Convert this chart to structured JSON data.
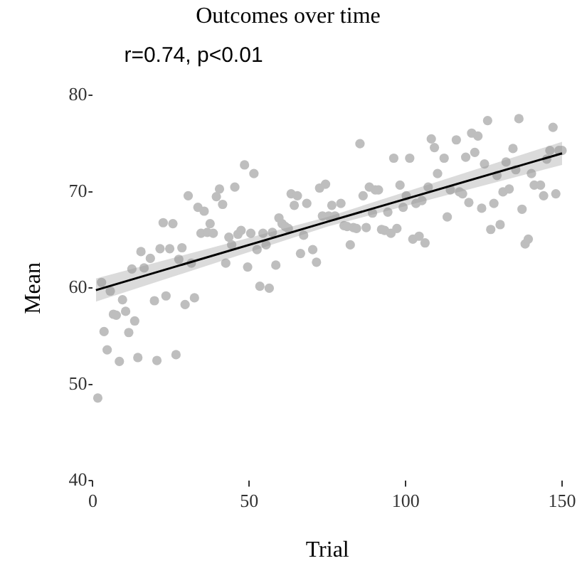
{
  "chart_data": {
    "type": "scatter",
    "title": "Outcomes over time",
    "xlabel": "Trial",
    "ylabel": "Mean",
    "annotations": [
      "r=0.74, p<0.01"
    ],
    "xticks": [
      0,
      50,
      100,
      150
    ],
    "yticks": [
      40,
      50,
      60,
      70,
      80
    ],
    "xlim": [
      0,
      150
    ],
    "ylim": [
      40,
      80
    ],
    "grid": false,
    "legend": false,
    "series": [
      {
        "marker": "circle",
        "color": "#bebebe",
        "x": [
          1.6,
          2.8,
          3.6,
          4.6,
          5.6,
          6.6,
          7.5,
          8.5,
          9.5,
          10.5,
          11.5,
          12.5,
          13.4,
          14.4,
          15.4,
          16.4,
          18.4,
          19.7,
          20.5,
          21.5,
          22.5,
          23.4,
          24.6,
          25.6,
          26.6,
          27.5,
          28.5,
          29.5,
          30.5,
          31.5,
          32.5,
          33.6,
          34.6,
          35.6,
          36.6,
          37.5,
          38.5,
          39.5,
          40.5,
          41.5,
          42.5,
          43.5,
          44.4,
          45.4,
          46.4,
          47.4,
          48.5,
          49.5,
          50.5,
          51.5,
          52.5,
          53.4,
          54.4,
          55.4,
          56.4,
          57.4,
          58.5,
          59.5,
          60.5,
          61.5,
          62.5,
          63.4,
          64.4,
          65.4,
          66.4,
          67.4,
          68.4,
          70.3,
          71.5,
          72.5,
          73.4,
          74.4,
          75.4,
          76.4,
          77.4,
          79.3,
          80.3,
          81.3,
          82.3,
          83.3,
          84.3,
          85.4,
          86.4,
          87.4,
          88.4,
          89.4,
          90.3,
          91.3,
          92.3,
          93.3,
          94.3,
          95.3,
          96.2,
          97.2,
          98.2,
          99.2,
          100.2,
          101.3,
          102.3,
          103.3,
          104.3,
          105.2,
          106.2,
          107.2,
          108.2,
          109.2,
          110.2,
          112.3,
          113.3,
          114.3,
          116.2,
          117.2,
          118.2,
          119.2,
          120.2,
          121.1,
          122.1,
          123.1,
          124.3,
          125.2,
          126.2,
          127.2,
          128.2,
          129.2,
          130.2,
          131.1,
          132.1,
          133.1,
          134.3,
          135.2,
          136.2,
          137.2,
          138.2,
          139.2,
          140.2,
          141.1,
          143.1,
          144.1,
          145.1,
          146.1,
          147.1,
          148,
          149,
          150
        ],
        "values": [
          48.6,
          60.6,
          55.5,
          53.6,
          59.7,
          57.3,
          57.2,
          52.4,
          58.8,
          57.6,
          55.4,
          62,
          56.6,
          52.8,
          63.8,
          62.1,
          63.1,
          58.7,
          52.5,
          64.1,
          66.8,
          59.2,
          64.1,
          66.7,
          53.1,
          63,
          64.2,
          58.3,
          69.6,
          62.6,
          59,
          68.4,
          65.7,
          68,
          65.8,
          66.7,
          65.7,
          69.5,
          70.3,
          68.7,
          62.6,
          65.3,
          64.5,
          70.5,
          65.6,
          66,
          72.8,
          62.2,
          65.7,
          71.9,
          64,
          60.2,
          65.7,
          64.5,
          60,
          65.8,
          62.4,
          67.3,
          66.7,
          66.4,
          66.2,
          69.8,
          68.6,
          69.6,
          63.6,
          65.5,
          68.8,
          64,
          62.7,
          70.4,
          67.5,
          70.8,
          67.5,
          68.6,
          67.5,
          68.8,
          66.5,
          66.4,
          64.5,
          66.3,
          66.2,
          75,
          69.6,
          66.3,
          70.5,
          67.8,
          70.2,
          70.2,
          66.1,
          66,
          67.9,
          65.7,
          73.5,
          66.2,
          70.7,
          68.4,
          69.6,
          73.5,
          65.1,
          68.8,
          65.4,
          69.1,
          64.7,
          70.5,
          75.5,
          74.6,
          71.9,
          73.5,
          67.4,
          70.2,
          75.4,
          70,
          69.8,
          73.6,
          68.9,
          76.1,
          74.1,
          75.8,
          68.3,
          72.9,
          77.4,
          66.1,
          68.8,
          71.7,
          66.6,
          70,
          73.1,
          70.3,
          74.5,
          72.3,
          77.6,
          68.2,
          64.6,
          65.1,
          71.9,
          70.7,
          70.7,
          69.6,
          73.4,
          74.3,
          76.7,
          69.8,
          74.3,
          74.3
        ]
      },
      {
        "type": "line",
        "color": "#000000",
        "x": [
          1,
          75,
          150
        ],
        "values": [
          59.8,
          66.9,
          74.0
        ],
        "lower": [
          58.6,
          66.4,
          72.8
        ],
        "upper": [
          61.0,
          67.4,
          75.2
        ]
      }
    ]
  }
}
